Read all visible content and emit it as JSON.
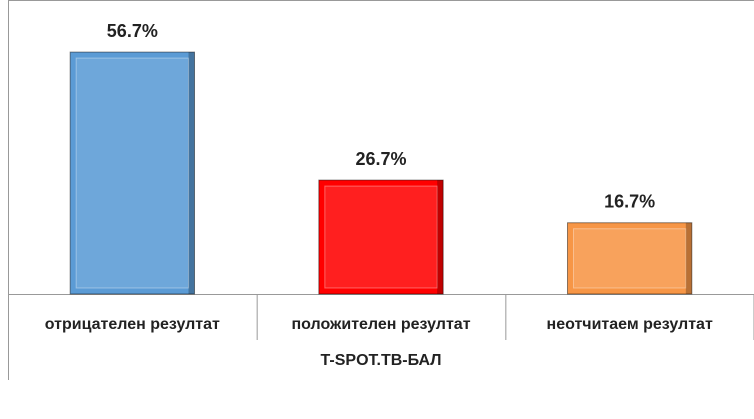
{
  "chart_data": {
    "type": "bar",
    "categories": [
      "отрицателен резултат",
      "положителен резултат",
      "неотчитаем резултат"
    ],
    "values": [
      56.7,
      26.7,
      16.7
    ],
    "value_labels": [
      "56.7%",
      "26.7%",
      "16.7%"
    ],
    "colors": [
      "#5b9bd5",
      "#ff0000",
      "#f79646"
    ],
    "x_label": "T-SPOT.TB-БАЛ",
    "ylim": [
      0,
      60
    ]
  }
}
